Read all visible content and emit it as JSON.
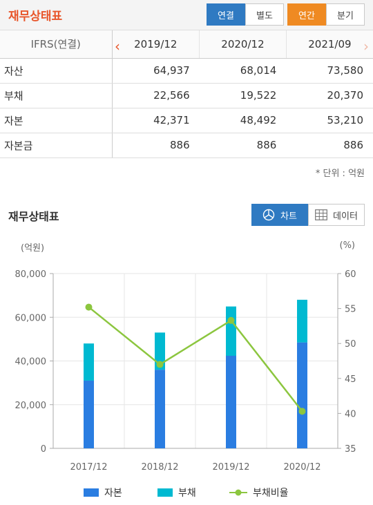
{
  "header": {
    "title": "재무상태표",
    "toggle_consolidated": "연결",
    "toggle_separate": "별도",
    "toggle_annual": "연간",
    "toggle_quarterly": "분기"
  },
  "table": {
    "corner": "IFRS(연결)",
    "periods": [
      "2019/12",
      "2020/12",
      "2021/09"
    ],
    "rows": [
      {
        "label": "자산",
        "values": [
          "64,937",
          "68,014",
          "73,580"
        ]
      },
      {
        "label": "부채",
        "values": [
          "22,566",
          "19,522",
          "20,370"
        ]
      },
      {
        "label": "자본",
        "values": [
          "42,371",
          "48,492",
          "53,210"
        ]
      },
      {
        "label": "자본금",
        "values": [
          "886",
          "886",
          "886"
        ]
      }
    ],
    "unit_note": "* 단위 : 억원",
    "prev_arrow": "‹",
    "next_arrow": "›"
  },
  "chart_section": {
    "title": "재무상태표",
    "chart_button": "차트",
    "data_button": "데이터",
    "left_unit": "(억원)",
    "right_unit": "(%)"
  },
  "chart_data": {
    "type": "bar",
    "categories": [
      "2017/12",
      "2018/12",
      "2019/12",
      "2020/12"
    ],
    "series": [
      {
        "name": "자본",
        "type": "stacked-bar",
        "axis": "left",
        "color": "#2a7de1",
        "values": [
          31000,
          36000,
          42371,
          48492
        ]
      },
      {
        "name": "부채",
        "type": "stacked-bar",
        "axis": "left",
        "color": "#00b9d1",
        "values": [
          17000,
          17000,
          22566,
          19522
        ]
      },
      {
        "name": "부채비율",
        "type": "line",
        "axis": "right",
        "color": "#8cc63f",
        "values": [
          55.2,
          47.0,
          53.3,
          40.3
        ]
      }
    ],
    "y_left": {
      "min": 0,
      "max": 80000,
      "ticks": [
        "0",
        "20,000",
        "40,000",
        "60,000",
        "80,000"
      ]
    },
    "y_right": {
      "min": 35,
      "max": 60,
      "ticks": [
        "35",
        "40",
        "45",
        "50",
        "55",
        "60"
      ]
    },
    "grid": true,
    "legend": "bottom"
  }
}
